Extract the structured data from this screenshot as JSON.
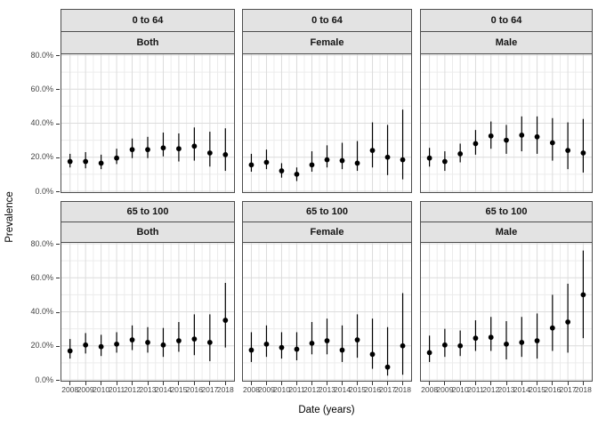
{
  "figure": {
    "kind": "faceted errorbar/point plot (2 rows x 3 cols)",
    "background": "#ffffff"
  },
  "colors": {
    "point": "#000000",
    "errorbar": "#000000",
    "strip_fill": "#e3e3e3",
    "panel_border": "#4d4d4d",
    "grid_major": "#dcdcdc",
    "grid_minor": "#ececec",
    "tick_text": "#444444",
    "axis_title_text": "#000000"
  },
  "axes": {
    "y_label": "Prevalence",
    "x_label": "Date (years)",
    "y_ticks": [
      {
        "value": 80,
        "label": "80.0%"
      },
      {
        "value": 60,
        "label": "60.0%"
      },
      {
        "value": 40,
        "label": "40.0%"
      },
      {
        "value": 20,
        "label": "20.0%"
      },
      {
        "value": 0,
        "label": "0.0%"
      }
    ],
    "x_tick_labels": [
      "2008",
      "2009",
      "2010",
      "2011",
      "2012",
      "2013",
      "2014",
      "2015",
      "2016",
      "2017",
      "2018"
    ]
  },
  "chart_data": {
    "type": "scatter",
    "title": "",
    "xlabel": "Date (years)",
    "ylabel": "Prevalence",
    "x": [
      2008,
      2009,
      2010,
      2011,
      2012,
      2013,
      2014,
      2015,
      2016,
      2017,
      2018
    ],
    "ylim": [
      0,
      80
    ],
    "y_unit": "%",
    "grid": true,
    "legend": false,
    "facet_rows": [
      "0 to 64",
      "65 to 100"
    ],
    "facet_cols": [
      "Both",
      "Female",
      "Male"
    ],
    "facets": [
      {
        "age": "0 to 64",
        "sex": "Both",
        "est": [
          17.5,
          17.5,
          16.5,
          19.5,
          24.5,
          24.5,
          25.5,
          25,
          26.5,
          22.5,
          21.5
        ],
        "lo": [
          14,
          13.5,
          13,
          16,
          19.5,
          19.5,
          20.5,
          17.5,
          18,
          14.5,
          12
        ],
        "hi": [
          22,
          23,
          21.5,
          25,
          31,
          32,
          34.5,
          34,
          37.5,
          35,
          37
        ]
      },
      {
        "age": "0 to 64",
        "sex": "Female",
        "est": [
          15.5,
          17,
          12,
          10,
          15.5,
          18.5,
          18,
          16.5,
          24,
          20,
          18.5
        ],
        "lo": [
          11.5,
          13,
          8,
          6,
          11.5,
          14,
          13,
          12,
          14,
          9.5,
          7
        ],
        "hi": [
          22,
          24.5,
          16.5,
          14,
          23.5,
          27,
          28.5,
          29.5,
          40.5,
          39,
          48
        ]
      },
      {
        "age": "0 to 64",
        "sex": "Male",
        "est": [
          19.5,
          17.5,
          22,
          28,
          32.5,
          30,
          33,
          32,
          28.5,
          24,
          22.5
        ],
        "lo": [
          14.5,
          12,
          17,
          21.5,
          25,
          22,
          23.5,
          22,
          18,
          13,
          11
        ],
        "hi": [
          25.5,
          23.5,
          28,
          36,
          41,
          39,
          44,
          44,
          43,
          40.5,
          42.5
        ]
      },
      {
        "age": "65 to 100",
        "sex": "Both",
        "est": [
          17,
          20.5,
          19.5,
          21,
          23.5,
          22,
          20.5,
          23,
          24,
          22,
          35
        ],
        "lo": [
          12.5,
          15.5,
          14,
          16,
          17.5,
          16,
          13.5,
          16.5,
          14.5,
          11,
          19
        ],
        "hi": [
          24,
          27.5,
          26.5,
          28,
          32,
          31,
          30.5,
          34,
          38.5,
          38.5,
          57
        ]
      },
      {
        "age": "65 to 100",
        "sex": "Female",
        "est": [
          17.5,
          21,
          19,
          18,
          21.5,
          23,
          17.5,
          23.5,
          15,
          7.5,
          20
        ],
        "lo": [
          10.5,
          13.5,
          12.5,
          11.5,
          15,
          15,
          10.5,
          13,
          6.5,
          2.5,
          3
        ],
        "hi": [
          28,
          32,
          28,
          28,
          34,
          36,
          32,
          38.5,
          36,
          31,
          51
        ]
      },
      {
        "age": "65 to 100",
        "sex": "Male",
        "est": [
          16,
          20.5,
          20,
          24.5,
          25,
          21,
          22,
          23,
          30.5,
          34,
          50
        ],
        "lo": [
          10.5,
          13.5,
          14,
          17,
          17,
          12,
          13.5,
          12.5,
          17,
          16,
          24.5
        ],
        "hi": [
          26,
          30,
          29,
          35,
          37,
          34.5,
          37,
          39,
          50,
          56.5,
          76
        ]
      }
    ]
  }
}
